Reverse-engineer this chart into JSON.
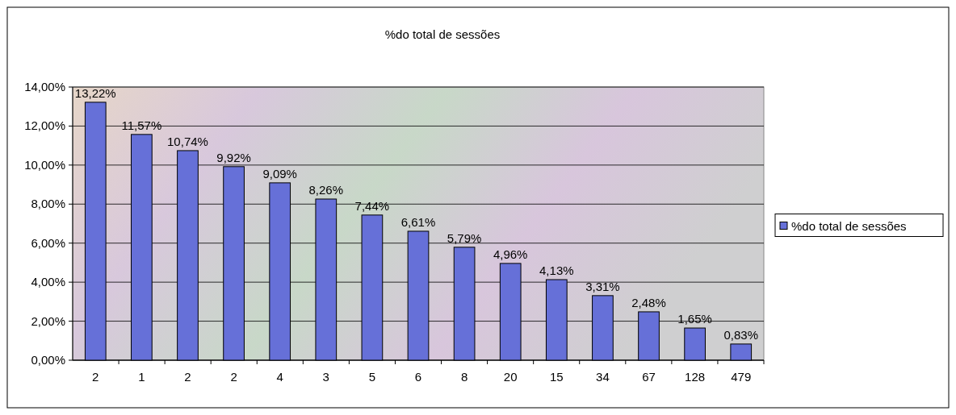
{
  "chart_data": {
    "type": "bar",
    "title": "%do total de sessões",
    "categories": [
      "2",
      "1",
      "2",
      "2",
      "4",
      "3",
      "5",
      "6",
      "8",
      "20",
      "15",
      "34",
      "67",
      "128",
      "479"
    ],
    "series": [
      {
        "name": "%do total de sessões",
        "color": "#6670d8",
        "values": [
          13.22,
          11.57,
          10.74,
          9.92,
          9.09,
          8.26,
          7.44,
          6.61,
          5.79,
          4.96,
          4.13,
          3.31,
          2.48,
          1.65,
          0.83
        ],
        "value_labels": [
          "13,22%",
          "11,57%",
          "10,74%",
          "9,92%",
          "9,09%",
          "8,26%",
          "7,44%",
          "6,61%",
          "5,79%",
          "4,96%",
          "4,13%",
          "3,31%",
          "2,48%",
          "1,65%",
          "0,83%"
        ]
      }
    ],
    "ylim": [
      0,
      14
    ],
    "yticks": [
      {
        "value": 0,
        "label": "0,00%"
      },
      {
        "value": 2,
        "label": "2,00%"
      },
      {
        "value": 4,
        "label": "4,00%"
      },
      {
        "value": 6,
        "label": "6,00%"
      },
      {
        "value": 8,
        "label": "8,00%"
      },
      {
        "value": 10,
        "label": "10,00%"
      },
      {
        "value": 12,
        "label": "12,00%"
      },
      {
        "value": 14,
        "label": "14,00%"
      }
    ],
    "grid": "y",
    "legend": "right"
  }
}
